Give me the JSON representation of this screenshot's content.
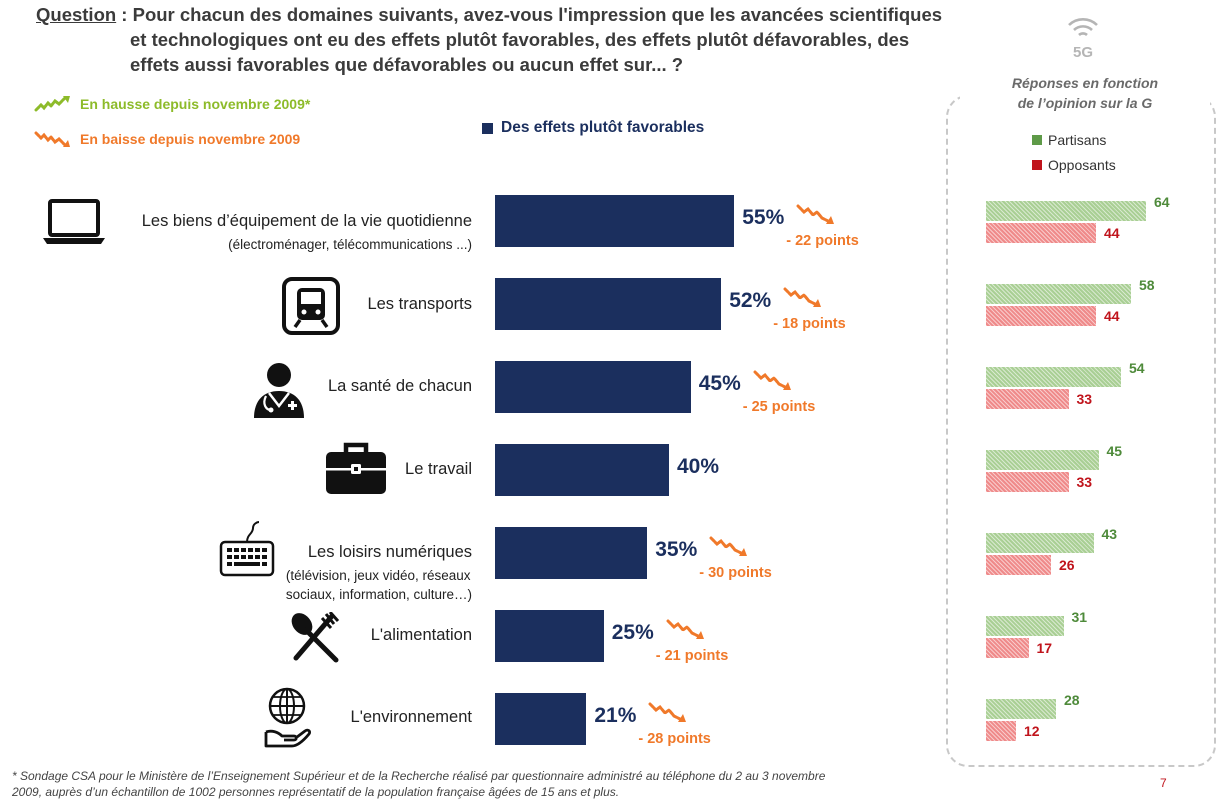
{
  "question": {
    "label": "Question",
    "line1": " : Pour chacun des domaines suivants, avez-vous l'impression que les avancées scientifiques",
    "line2": "et technologiques ont eu des effets plutôt favorables, des effets plutôt défavorables, des",
    "line3": "effets aussi favorables que défavorables ou aucun effet sur... ?"
  },
  "trend_legend": {
    "up": "En hausse depuis novembre 2009*",
    "down": "En baisse depuis novembre 2009"
  },
  "colors": {
    "bar": "#1b2f5e",
    "trend_up": "#8dbb2a",
    "trend_down": "#f0792a",
    "partisans": "#a9cf94",
    "opposants": "#ef8a8a",
    "partisans_text": "#4e8a3a",
    "opposants_text": "#c0141c"
  },
  "side_panel": {
    "icon": "5g-icon",
    "icon_label": "5G",
    "title_line1": "Réponses en fonction",
    "title_line2": "de l’opinion sur la  G"
  },
  "chart_data": [
    {
      "type": "bar",
      "orientation": "horizontal",
      "legend": "Des effets plutôt favorables",
      "xlim": [
        0,
        100
      ],
      "unit": "%",
      "categories": [
        {
          "label": "Les biens d’équipement de la vie quotidienne",
          "sub": "(électroménager, télécommunications ...)",
          "value": 55,
          "value_label": "55%",
          "trend": "down",
          "trend_label": "- 22 points",
          "icon": "laptop-icon"
        },
        {
          "label": "Les transports",
          "sub": "",
          "value": 52,
          "value_label": "52%",
          "trend": "down",
          "trend_label": "- 18 points",
          "icon": "train-icon"
        },
        {
          "label": "La santé de chacun",
          "sub": "",
          "value": 45,
          "value_label": "45%",
          "trend": "down",
          "trend_label": "- 25 points",
          "icon": "doctor-icon"
        },
        {
          "label": "Le travail",
          "sub": "",
          "value": 40,
          "value_label": "40%",
          "trend": "none",
          "trend_label": "",
          "icon": "briefcase-icon"
        },
        {
          "label": "Les loisirs numériques",
          "sub": "(télévision, jeux vidéo, réseaux sociaux, information, culture…)",
          "sub_line1": "(télévision, jeux vidéo, réseaux",
          "sub_line2": "sociaux, information, culture…)",
          "value": 35,
          "value_label": "35%",
          "trend": "down",
          "trend_label": "- 30 points",
          "icon": "keyboard-icon"
        },
        {
          "label": "L'alimentation",
          "sub": "",
          "value": 25,
          "value_label": "25%",
          "trend": "down",
          "trend_label": "- 21 points",
          "icon": "cutlery-icon"
        },
        {
          "label": "L'environnement",
          "sub": "",
          "value": 21,
          "value_label": "21%",
          "trend": "down",
          "trend_label": "- 28 points",
          "icon": "globe-hand-icon"
        }
      ]
    },
    {
      "type": "bar",
      "orientation": "horizontal",
      "xlim": [
        0,
        100
      ],
      "series": [
        {
          "name": "Partisans",
          "values": [
            64,
            58,
            54,
            45,
            43,
            31,
            28
          ]
        },
        {
          "name": "Opposants",
          "values": [
            44,
            44,
            33,
            33,
            26,
            17,
            12
          ]
        }
      ]
    }
  ],
  "footnote": {
    "line1": "* Sondage CSA pour le Ministère de l’Enseignement Supérieur et de la Recherche réalisé par questionnaire administré au téléphone du 2 au 3 novembre",
    "line2": "2009, auprès d’un échantillon de 1002 personnes représentatif de la population française âgées de 15 ans et plus."
  },
  "page_number": "7"
}
